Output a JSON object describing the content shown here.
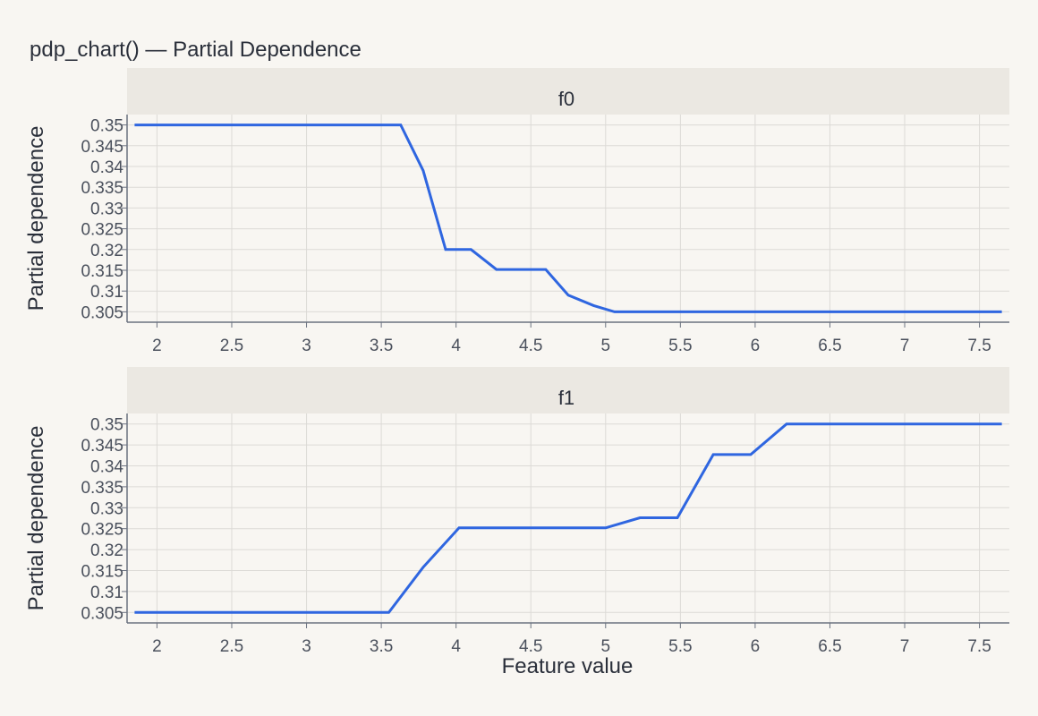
{
  "chart_title": "pdp_chart() — Partial Dependence",
  "colors": {
    "background": "#f8f6f2",
    "strip": "#ebe8e2",
    "grid": "#dcdad6",
    "axis": "#6b7280",
    "line": "#2f66e0"
  },
  "chart_data": [
    {
      "type": "line",
      "facet": "f0",
      "xlabel": "",
      "ylabel": "Partial dependence",
      "xlim": [
        1.8,
        7.7
      ],
      "ylim": [
        0.3025,
        0.3525
      ],
      "xticks": [
        "2",
        "2.5",
        "3",
        "3.5",
        "4",
        "4.5",
        "5",
        "5.5",
        "6",
        "6.5",
        "7",
        "7.5"
      ],
      "yticks": [
        "0.305",
        "0.31",
        "0.315",
        "0.32",
        "0.325",
        "0.33",
        "0.335",
        "0.34",
        "0.345",
        "0.35"
      ],
      "grid": true,
      "x": [
        1.85,
        3.63,
        3.78,
        3.93,
        4.1,
        4.27,
        4.44,
        4.6,
        4.75,
        4.92,
        5.06,
        7.65
      ],
      "y": [
        0.35,
        0.35,
        0.339,
        0.32,
        0.32,
        0.3152,
        0.3152,
        0.3152,
        0.309,
        0.3065,
        0.305,
        0.305
      ]
    },
    {
      "type": "line",
      "facet": "f1",
      "xlabel": "Feature value",
      "ylabel": "Partial dependence",
      "xlim": [
        1.8,
        7.7
      ],
      "ylim": [
        0.3025,
        0.3525
      ],
      "xticks": [
        "2",
        "2.5",
        "3",
        "3.5",
        "4",
        "4.5",
        "5",
        "5.5",
        "6",
        "6.5",
        "7",
        "7.5"
      ],
      "yticks": [
        "0.305",
        "0.31",
        "0.315",
        "0.32",
        "0.325",
        "0.33",
        "0.335",
        "0.34",
        "0.345",
        "0.35"
      ],
      "grid": true,
      "x": [
        1.85,
        3.55,
        3.78,
        4.02,
        4.2,
        4.5,
        4.75,
        5.0,
        5.23,
        5.48,
        5.72,
        5.97,
        6.21,
        7.65
      ],
      "y": [
        0.305,
        0.305,
        0.3158,
        0.3252,
        0.3252,
        0.3252,
        0.3252,
        0.3252,
        0.3276,
        0.3276,
        0.3427,
        0.3427,
        0.35,
        0.35
      ]
    }
  ]
}
